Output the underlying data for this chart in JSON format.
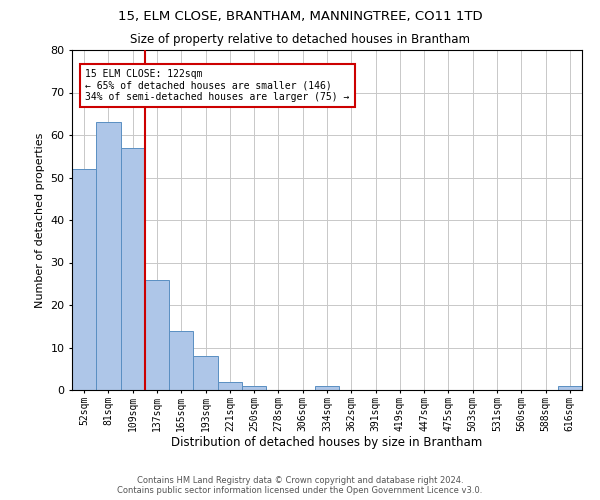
{
  "title1": "15, ELM CLOSE, BRANTHAM, MANNINGTREE, CO11 1TD",
  "title2": "Size of property relative to detached houses in Brantham",
  "xlabel": "Distribution of detached houses by size in Brantham",
  "ylabel": "Number of detached properties",
  "bin_labels": [
    "52sqm",
    "81sqm",
    "109sqm",
    "137sqm",
    "165sqm",
    "193sqm",
    "221sqm",
    "250sqm",
    "278sqm",
    "306sqm",
    "334sqm",
    "362sqm",
    "391sqm",
    "419sqm",
    "447sqm",
    "475sqm",
    "503sqm",
    "531sqm",
    "560sqm",
    "588sqm",
    "616sqm"
  ],
  "bar_heights": [
    52,
    63,
    57,
    26,
    14,
    8,
    2,
    1,
    0,
    0,
    1,
    0,
    0,
    0,
    0,
    0,
    0,
    0,
    0,
    0,
    1
  ],
  "bar_color": "#aec6e8",
  "bar_edge_color": "#5a8fc2",
  "property_line_x": 2.5,
  "annotation_line1": "15 ELM CLOSE: 122sqm",
  "annotation_line2": "← 65% of detached houses are smaller (146)",
  "annotation_line3": "34% of semi-detached houses are larger (75) →",
  "annotation_box_color": "#cc0000",
  "ylim": [
    0,
    80
  ],
  "yticks": [
    0,
    10,
    20,
    30,
    40,
    50,
    60,
    70,
    80
  ],
  "footer1": "Contains HM Land Registry data © Crown copyright and database right 2024.",
  "footer2": "Contains public sector information licensed under the Open Government Licence v3.0.",
  "bg_color": "#ffffff",
  "grid_color": "#c8c8c8"
}
